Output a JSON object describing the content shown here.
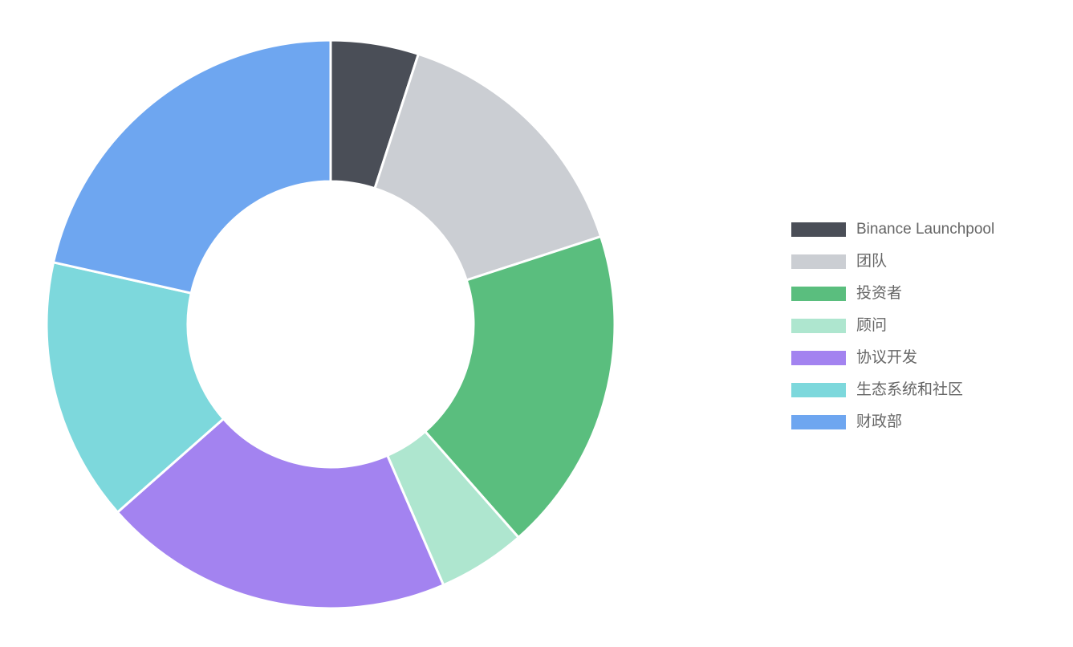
{
  "chart_data": {
    "type": "donut",
    "categories": [
      "Binance Launchpool",
      "团队",
      "投资者",
      "顾问",
      "协议开发",
      "生态系统和社区",
      "财政部"
    ],
    "values": [
      5,
      15,
      18.5,
      5,
      20,
      15,
      21.5
    ],
    "colors": [
      "#4a4e57",
      "#cbced3",
      "#5abe7e",
      "#aee6cf",
      "#a383f0",
      "#7dd8dc",
      "#6ea6f0"
    ],
    "legend": "right"
  }
}
